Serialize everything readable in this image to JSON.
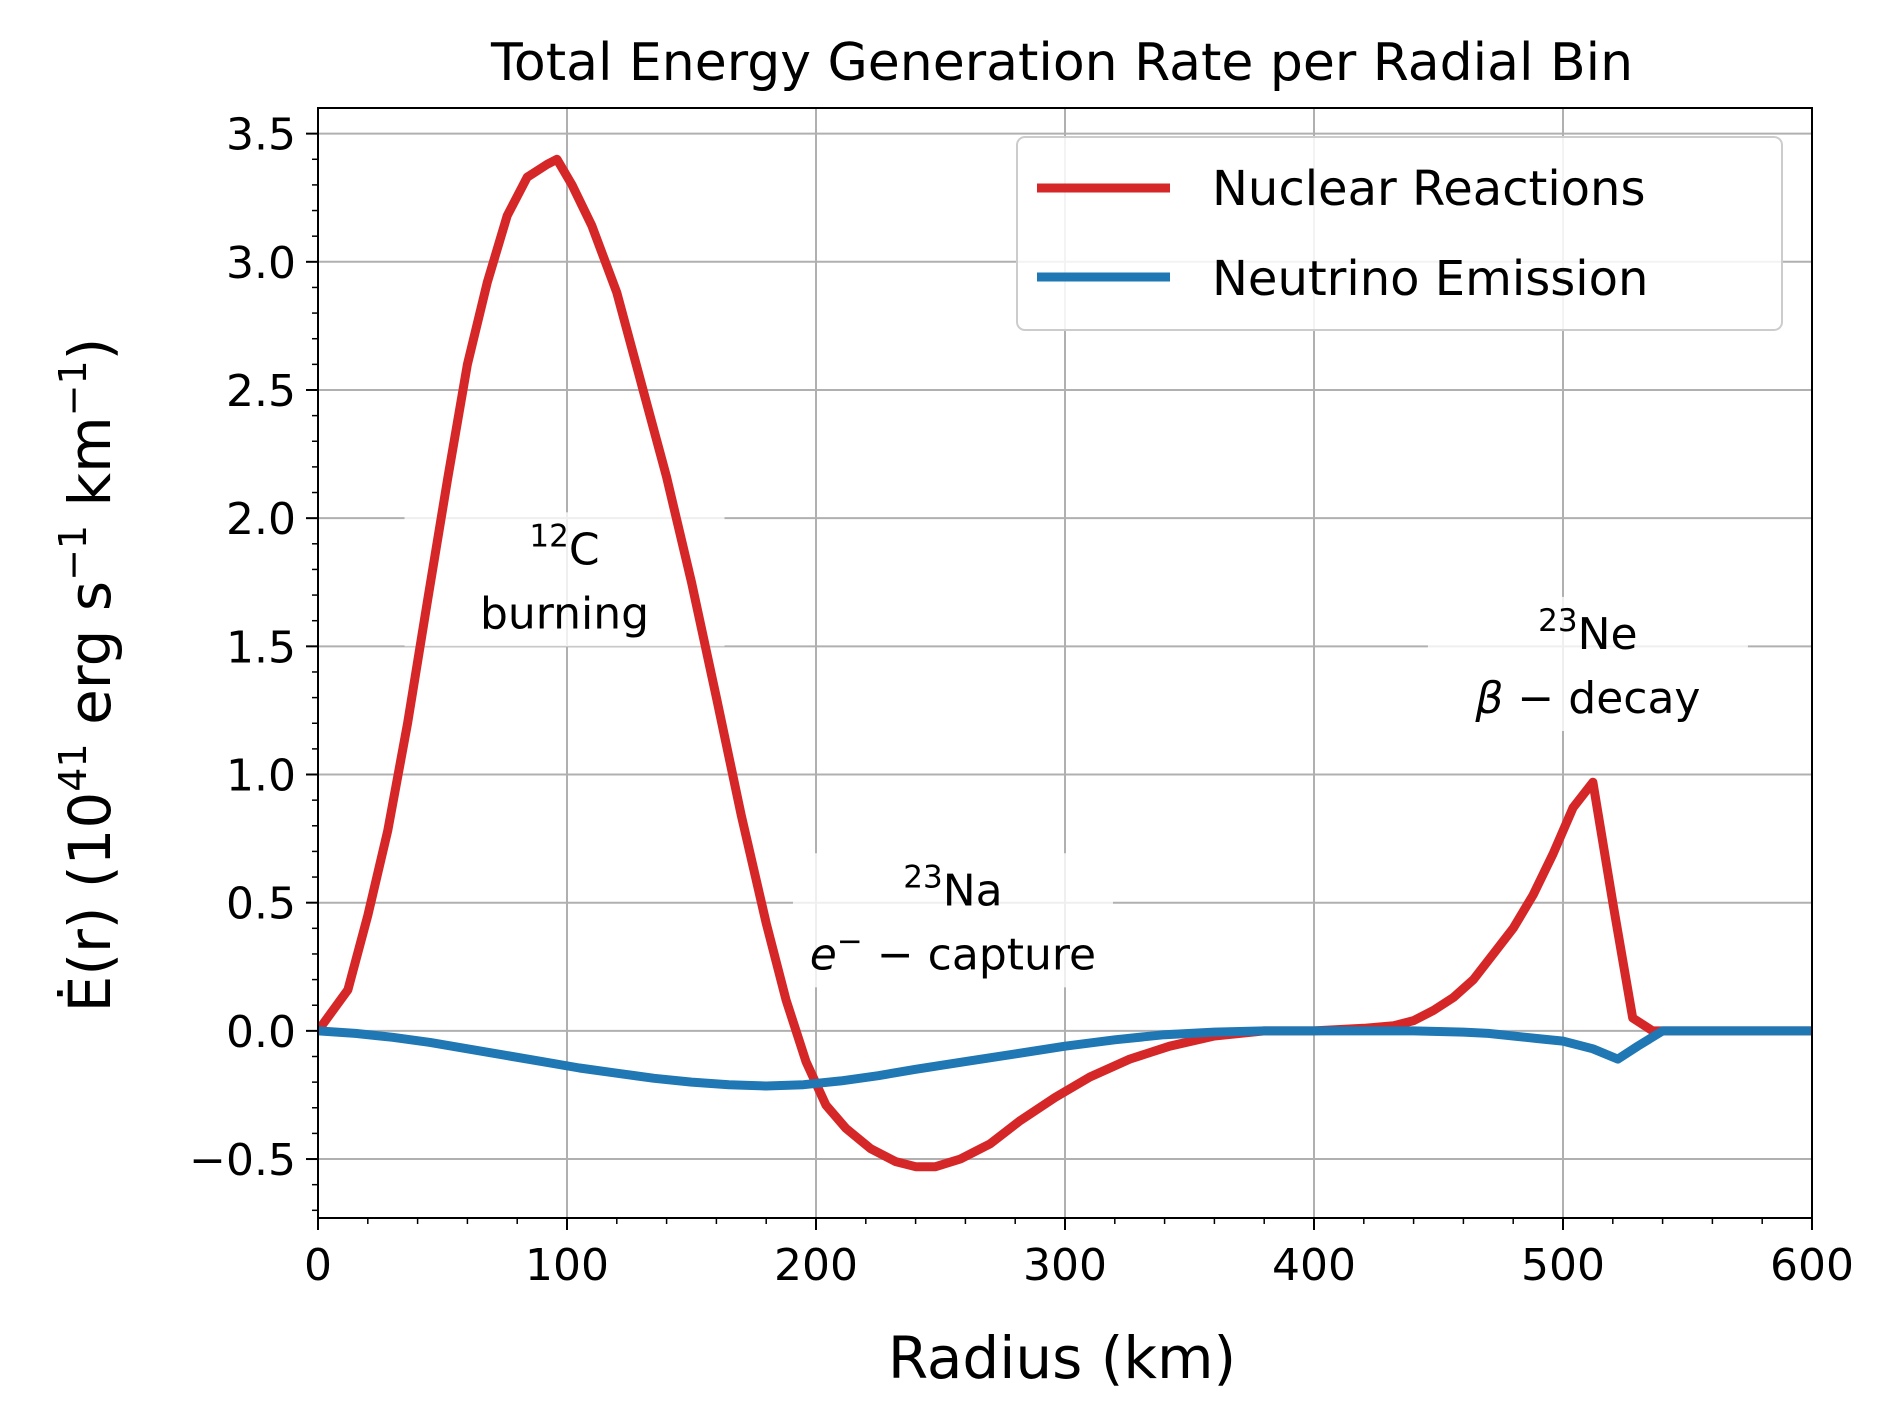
{
  "chart_data": {
    "type": "line",
    "title": "Total Energy Generation Rate per Radial Bin",
    "xlabel": "Radius (km)",
    "ylabel": {
      "main": "Ė(r) (10",
      "exp1": "41",
      "mid": " erg s",
      "exp2": "−1",
      "mid2": " km",
      "exp3": "−1",
      "end": ")"
    },
    "xlim": [
      0,
      600
    ],
    "ylim": [
      -0.73,
      3.6
    ],
    "xticks": [
      0,
      100,
      200,
      300,
      400,
      500,
      600
    ],
    "xtick_labels": [
      "0",
      "100",
      "200",
      "300",
      "400",
      "500",
      "600"
    ],
    "yticks": [
      -0.5,
      0.0,
      0.5,
      1.0,
      1.5,
      2.0,
      2.5,
      3.0,
      3.5
    ],
    "ytick_labels": [
      "−0.5",
      "0.0",
      "0.5",
      "1.0",
      "1.5",
      "2.0",
      "2.5",
      "3.0",
      "3.5"
    ],
    "grid": true,
    "legend_position": "top-right",
    "series": [
      {
        "name": "Nuclear Reactions",
        "color": "#d62728",
        "x": [
          0,
          12,
          20,
          28,
          36,
          44,
          52,
          60,
          68,
          76,
          84,
          92,
          96,
          102,
          110,
          120,
          130,
          140,
          150,
          160,
          170,
          180,
          188,
          196,
          204,
          212,
          222,
          232,
          240,
          248,
          258,
          270,
          282,
          296,
          310,
          326,
          342,
          360,
          380,
          400,
          420,
          432,
          440,
          448,
          456,
          464,
          472,
          480,
          488,
          496,
          504,
          512,
          520,
          528,
          536,
          545,
          560,
          600
        ],
        "y": [
          0.0,
          0.16,
          0.45,
          0.78,
          1.2,
          1.68,
          2.15,
          2.6,
          2.92,
          3.18,
          3.33,
          3.38,
          3.4,
          3.3,
          3.14,
          2.88,
          2.52,
          2.16,
          1.75,
          1.3,
          0.84,
          0.42,
          0.12,
          -0.12,
          -0.29,
          -0.38,
          -0.46,
          -0.51,
          -0.53,
          -0.53,
          -0.5,
          -0.44,
          -0.35,
          -0.26,
          -0.18,
          -0.11,
          -0.06,
          -0.02,
          0.0,
          0.0,
          0.01,
          0.02,
          0.04,
          0.08,
          0.13,
          0.2,
          0.3,
          0.4,
          0.53,
          0.69,
          0.87,
          0.97,
          0.5,
          0.05,
          0.0,
          0.0,
          0.0,
          0.0
        ]
      },
      {
        "name": "Neutrino Emission",
        "color": "#1f77b4",
        "x": [
          0,
          15,
          30,
          45,
          60,
          75,
          90,
          105,
          120,
          135,
          150,
          165,
          180,
          195,
          210,
          225,
          240,
          260,
          280,
          300,
          320,
          340,
          360,
          380,
          400,
          420,
          440,
          460,
          470,
          480,
          490,
          500,
          512,
          522,
          530,
          540,
          560,
          600
        ],
        "y": [
          0.0,
          -0.01,
          -0.025,
          -0.045,
          -0.07,
          -0.095,
          -0.12,
          -0.145,
          -0.165,
          -0.185,
          -0.2,
          -0.21,
          -0.215,
          -0.21,
          -0.195,
          -0.175,
          -0.15,
          -0.12,
          -0.09,
          -0.06,
          -0.035,
          -0.015,
          -0.005,
          0.0,
          0.0,
          0.0,
          0.0,
          -0.005,
          -0.01,
          -0.02,
          -0.03,
          -0.04,
          -0.07,
          -0.11,
          -0.06,
          0.0,
          0.0,
          0.0
        ]
      }
    ],
    "annotations": [
      {
        "id": "carbon",
        "x": 99,
        "y_top": 1.82,
        "y_bottom": 1.57,
        "sup": "12",
        "element": "C",
        "line2": "burning"
      },
      {
        "id": "sodium",
        "x": 255,
        "y_top": 0.49,
        "y_bottom": 0.24,
        "sup": "23",
        "element": "Na",
        "line2_italic": "e",
        "line2_sup": "−",
        "line2_rest": " − capture"
      },
      {
        "id": "neon",
        "x": 510,
        "y_top": 1.49,
        "y_bottom": 1.24,
        "sup": "23",
        "element": "Ne",
        "line2_italic": "β",
        "line2_rest": " − decay"
      }
    ]
  }
}
